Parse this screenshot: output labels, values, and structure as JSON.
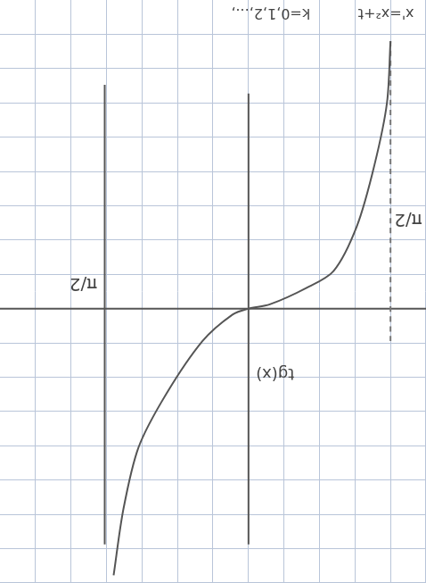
{
  "chart_data": {
    "type": "line",
    "grid": true,
    "tick_labels": false,
    "xlim": [
      -2.0,
      2.8
    ],
    "xticks": [
      -2.0,
      -1.6,
      -1.2,
      -0.8,
      -0.4,
      0,
      0.4,
      0.8,
      1.2,
      1.6,
      2.0,
      2.4,
      2.8
    ],
    "ylim": [
      -3.6,
      3.2
    ],
    "yticks": [
      -3.6,
      -3.2,
      -2.8,
      -2.4,
      -2.0,
      -1.6,
      -1.2,
      -0.8,
      -0.4,
      0,
      0.4,
      0.8,
      1.2,
      1.6,
      2.0,
      2.4,
      2.8,
      3.2
    ],
    "annotations": [
      "π/2",
      "π/2",
      "tg(x)",
      "k=0,1,2,...,",
      "x'=x²+t"
    ],
    "series": [
      {
        "color": "#555555",
        "line_style": "solid",
        "x": [
          -1.6,
          -1.56,
          -1.42,
          -1.22,
          -0.96,
          -0.65,
          -0.24,
          0,
          0.18,
          0.52,
          0.93,
          1.24,
          1.41,
          1.52
        ],
        "values": [
          -3.12,
          -2.4,
          -1.68,
          -0.96,
          -0.44,
          -0.24,
          -0.05,
          0,
          0.07,
          0.38,
          1.0,
          1.62,
          2.34,
          3.11
        ]
      },
      {
        "color": "#777777",
        "line_style": "dashed",
        "x": [
          -1.6,
          -1.6
        ],
        "values": [
          -3.12,
          0.38
        ]
      },
      {
        "color": "#555555",
        "line_style": "solid",
        "x": [
          1.62,
          1.62
        ],
        "values": [
          -2.61,
          2.75
        ]
      },
      {
        "color": "#555555",
        "line_style": "solid",
        "x": [
          0,
          0
        ],
        "values": [
          -2.51,
          2.75
        ]
      },
      {
        "color": "#555555",
        "line_style": "solid",
        "x": [
          -2.0,
          2.8
        ],
        "values": [
          0,
          0
        ]
      }
    ]
  }
}
